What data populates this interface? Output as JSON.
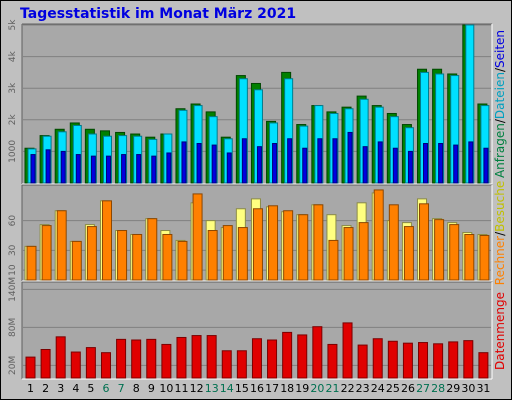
{
  "title": "Tagesstatistik im Monat März 2021",
  "colors": {
    "anfragen": "#008000",
    "dateien": "#00e0ff",
    "seiten": "#0000e0",
    "besuche": "#ffff80",
    "rechner": "#ff8000",
    "datenmenge": "#e00000",
    "weekend_label": "#007050",
    "weekday_label": "#000000"
  },
  "right_labels": {
    "top": [
      {
        "text": "Anfragen",
        "color": "#008040"
      },
      {
        "text": "/",
        "color": "#000000"
      },
      {
        "text": "Dateien",
        "color": "#00a0c0"
      },
      {
        "text": "/",
        "color": "#000000"
      },
      {
        "text": "Seiten",
        "color": "#0000e0"
      }
    ],
    "middle": [
      {
        "text": "Rechner",
        "color": "#ff8000"
      },
      {
        "text": "/",
        "color": "#000000"
      },
      {
        "text": "Besuche",
        "color": "#c0c000"
      }
    ],
    "bottom": [
      {
        "text": "Datenmenge",
        "color": "#e00000"
      }
    ]
  },
  "chart_data": [
    {
      "type": "bar",
      "panel": "requests",
      "ylim": [
        0,
        5000
      ],
      "ticks": [
        {
          "value": 1000,
          "label": "1000"
        },
        {
          "value": 2000,
          "label": "2k"
        },
        {
          "value": 3000,
          "label": "3k"
        },
        {
          "value": 4000,
          "label": "4k"
        },
        {
          "value": 5000,
          "label": "5k"
        }
      ],
      "series": [
        {
          "name": "Anfragen",
          "values": [
            1100,
            1500,
            1700,
            1900,
            1700,
            1650,
            1600,
            1550,
            1450,
            1550,
            2350,
            2500,
            2250,
            1450,
            3400,
            3150,
            1950,
            3500,
            1850,
            2450,
            2250,
            2400,
            2750,
            2450,
            2200,
            1850,
            3600,
            3600,
            3450,
            5000,
            2500
          ]
        },
        {
          "name": "Dateien",
          "values": [
            1080,
            1480,
            1620,
            1820,
            1550,
            1480,
            1500,
            1480,
            1380,
            1550,
            2300,
            2450,
            2100,
            1400,
            3300,
            2950,
            1900,
            3300,
            1800,
            2450,
            2200,
            2350,
            2650,
            2400,
            2100,
            1750,
            3500,
            3450,
            3400,
            5000,
            2450
          ]
        },
        {
          "name": "Seiten",
          "values": [
            900,
            1050,
            1000,
            900,
            850,
            850,
            900,
            900,
            850,
            950,
            1300,
            1250,
            1200,
            950,
            1400,
            1150,
            1250,
            1400,
            1100,
            1400,
            1400,
            1600,
            1150,
            1300,
            1100,
            1000,
            1250,
            1250,
            1200,
            1300,
            1100
          ]
        }
      ]
    },
    {
      "type": "bar",
      "panel": "visits",
      "ylim": [
        0,
        95
      ],
      "ticks": [
        {
          "value": 10,
          "label": "10"
        },
        {
          "value": 30,
          "label": "30"
        },
        {
          "value": 60,
          "label": "60"
        }
      ],
      "series": [
        {
          "name": "Besuche",
          "values": [
            34,
            56,
            70,
            39,
            56,
            80,
            50,
            46,
            62,
            50,
            40,
            78,
            60,
            53,
            72,
            82,
            74,
            69,
            66,
            76,
            66,
            55,
            78,
            88,
            60,
            58,
            82,
            62,
            58,
            48,
            46
          ]
        },
        {
          "name": "Rechner",
          "values": [
            34,
            55,
            70,
            39,
            54,
            80,
            50,
            46,
            62,
            46,
            39,
            87,
            50,
            55,
            53,
            72,
            75,
            70,
            66,
            76,
            40,
            53,
            58,
            91,
            76,
            54,
            77,
            61,
            56,
            46,
            45
          ]
        }
      ]
    },
    {
      "type": "bar",
      "panel": "traffic",
      "ylim": [
        0,
        150
      ],
      "ticks": [
        {
          "value": 20,
          "label": "20M"
        },
        {
          "value": 80,
          "label": "80M"
        },
        {
          "value": 140,
          "label": "140M"
        }
      ],
      "series": [
        {
          "name": "Datenmenge",
          "values": [
            33,
            45,
            65,
            41,
            48,
            40,
            61,
            60,
            61,
            53,
            64,
            67,
            67,
            43,
            43,
            62,
            60,
            72,
            68,
            81,
            53,
            87,
            52,
            62,
            58,
            55,
            56,
            54,
            57,
            59,
            40
          ]
        }
      ]
    }
  ],
  "x_axis": {
    "labels": [
      "1",
      "2",
      "3",
      "4",
      "5",
      "6",
      "7",
      "8",
      "9",
      "10",
      "11",
      "12",
      "13",
      "14",
      "15",
      "16",
      "17",
      "18",
      "19",
      "20",
      "21",
      "22",
      "23",
      "24",
      "25",
      "26",
      "27",
      "28",
      "29",
      "30",
      "31"
    ],
    "weekend_days": [
      6,
      7,
      13,
      14,
      20,
      21,
      27,
      28
    ]
  }
}
